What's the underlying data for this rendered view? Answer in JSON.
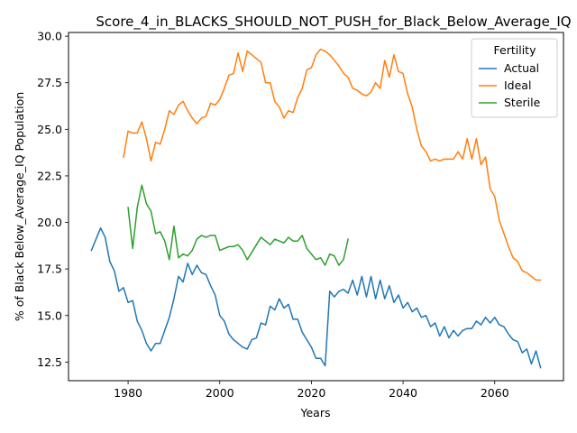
{
  "chart_data": {
    "type": "line",
    "title": "Score_4_in_BLACKS_SHOULD_NOT_PUSH_for_Black_Below_Average_IQ",
    "xlabel": "Years",
    "ylabel": "% of Black Below_Average_IQ Population",
    "xlim": [
      1967,
      2075
    ],
    "ylim": [
      11.5,
      30.2
    ],
    "x_ticks": [
      1980,
      2000,
      2020,
      2040,
      2060
    ],
    "x_tick_labels": [
      "1980",
      "2000",
      "2020",
      "2040",
      "2060"
    ],
    "y_ticks": [
      12.5,
      15.0,
      17.5,
      20.0,
      22.5,
      25.0,
      27.5,
      30.0
    ],
    "y_tick_labels": [
      "12.5",
      "15.0",
      "17.5",
      "20.0",
      "22.5",
      "25.0",
      "27.5",
      "30.0"
    ],
    "grid": false,
    "legend": {
      "title": "Fertility",
      "position": "upper right"
    },
    "series": [
      {
        "name": "Actual",
        "color": "#1f77b4",
        "x": [
          1972,
          1974,
          1975,
          1976,
          1977,
          1978,
          1979,
          1980,
          1981,
          1982,
          1983,
          1984,
          1985,
          1986,
          1987,
          1988,
          1989,
          1990,
          1991,
          1992,
          1993,
          1994,
          1995,
          1996,
          1997,
          1998,
          1999,
          2000,
          2001,
          2002,
          2003,
          2004,
          2005,
          2006,
          2007,
          2008,
          2009,
          2010,
          2011,
          2012,
          2013,
          2014,
          2015,
          2016,
          2017,
          2018,
          2019,
          2020,
          2021,
          2022,
          2023,
          2024,
          2025,
          2026,
          2027,
          2028,
          2029,
          2030,
          2031,
          2032,
          2033,
          2034,
          2035,
          2036,
          2037,
          2038,
          2039,
          2040,
          2041,
          2042,
          2043,
          2044,
          2045,
          2046,
          2047,
          2048,
          2049,
          2050,
          2051,
          2052,
          2053,
          2054,
          2055,
          2056,
          2057,
          2058,
          2059,
          2060,
          2061,
          2062,
          2063,
          2064,
          2065,
          2066,
          2067,
          2068,
          2069,
          2070
        ],
        "y": [
          18.5,
          19.7,
          19.2,
          17.9,
          17.4,
          16.3,
          16.5,
          15.7,
          15.8,
          14.7,
          14.2,
          13.5,
          13.1,
          13.5,
          13.5,
          14.2,
          14.9,
          15.9,
          17.1,
          16.8,
          17.8,
          17.2,
          17.7,
          17.3,
          17.2,
          16.6,
          16.1,
          15.0,
          14.7,
          14.0,
          13.7,
          13.5,
          13.3,
          13.2,
          13.7,
          13.8,
          14.6,
          14.5,
          15.5,
          15.3,
          15.9,
          15.4,
          15.6,
          14.8,
          14.8,
          14.1,
          13.7,
          13.3,
          12.7,
          12.7,
          12.3,
          16.3,
          16.0,
          16.3,
          16.4,
          16.2,
          16.9,
          16.1,
          17.1,
          16.0,
          17.1,
          15.9,
          16.9,
          15.9,
          16.6,
          15.7,
          16.1,
          15.4,
          15.7,
          15.2,
          15.4,
          14.9,
          15.0,
          14.4,
          14.6,
          13.9,
          14.4,
          13.8,
          14.2,
          13.9,
          14.2,
          14.3,
          14.3,
          14.7,
          14.5,
          14.9,
          14.6,
          14.9,
          14.5,
          14.4,
          14.0,
          13.7,
          13.6,
          13.0,
          13.2,
          12.4,
          13.1,
          12.2
        ]
      },
      {
        "name": "Ideal",
        "color": "#ff7f0e",
        "x": [
          1979,
          1980,
          1981,
          1982,
          1983,
          1984,
          1985,
          1986,
          1987,
          1988,
          1989,
          1990,
          1991,
          1992,
          1993,
          1994,
          1995,
          1996,
          1997,
          1998,
          1999,
          2000,
          2001,
          2002,
          2003,
          2004,
          2005,
          2006,
          2007,
          2008,
          2009,
          2010,
          2011,
          2012,
          2013,
          2014,
          2015,
          2016,
          2017,
          2018,
          2019,
          2020,
          2021,
          2022,
          2023,
          2024,
          2025,
          2026,
          2027,
          2028,
          2029,
          2030,
          2031,
          2032,
          2033,
          2034,
          2035,
          2036,
          2037,
          2038,
          2039,
          2040,
          2041,
          2042,
          2043,
          2044,
          2045,
          2046,
          2047,
          2048,
          2049,
          2050,
          2051,
          2052,
          2053,
          2054,
          2055,
          2056,
          2057,
          2058,
          2059,
          2060,
          2061,
          2062,
          2063,
          2064,
          2065,
          2066,
          2067,
          2068,
          2069,
          2070
        ],
        "y": [
          23.5,
          24.9,
          24.8,
          24.8,
          25.4,
          24.5,
          23.3,
          24.3,
          24.2,
          25.0,
          26.0,
          25.8,
          26.3,
          26.5,
          26.0,
          25.6,
          25.3,
          25.6,
          25.7,
          26.4,
          26.3,
          26.6,
          27.2,
          27.9,
          28.0,
          29.1,
          28.1,
          29.2,
          29.0,
          28.8,
          28.6,
          27.5,
          27.5,
          26.5,
          26.2,
          25.6,
          26.0,
          25.9,
          26.7,
          27.2,
          28.2,
          28.3,
          29.0,
          29.3,
          29.2,
          29.0,
          28.7,
          28.4,
          28.0,
          27.8,
          27.2,
          27.1,
          26.9,
          26.8,
          27.0,
          27.5,
          27.2,
          28.7,
          27.8,
          29.0,
          28.1,
          28.0,
          26.9,
          26.2,
          25.0,
          24.1,
          23.8,
          23.3,
          23.4,
          23.3,
          23.4,
          23.4,
          23.4,
          23.8,
          23.4,
          24.5,
          23.4,
          24.5,
          23.1,
          23.5,
          21.8,
          21.4,
          20.1,
          19.4,
          18.7,
          18.1,
          17.9,
          17.4,
          17.3,
          17.1,
          16.9,
          16.9
        ]
      },
      {
        "name": "Sterile",
        "color": "#2ca02c",
        "x": [
          1980,
          1981,
          1982,
          1983,
          1984,
          1985,
          1986,
          1987,
          1988,
          1989,
          1990,
          1991,
          1992,
          1993,
          1994,
          1995,
          1996,
          1997,
          1998,
          1999,
          2000,
          2001,
          2002,
          2003,
          2004,
          2005,
          2006,
          2007,
          2008,
          2009,
          2010,
          2011,
          2012,
          2013,
          2014,
          2015,
          2016,
          2017,
          2018,
          2019,
          2020,
          2021,
          2022,
          2023,
          2024,
          2025,
          2026,
          2027,
          2028
        ],
        "y": [
          20.8,
          18.6,
          20.8,
          22.0,
          21.0,
          20.6,
          19.4,
          19.5,
          19.0,
          18.0,
          19.8,
          18.1,
          18.3,
          18.2,
          18.5,
          19.1,
          19.3,
          19.2,
          19.3,
          19.3,
          18.5,
          18.6,
          18.7,
          18.7,
          18.8,
          18.5,
          18.0,
          18.4,
          18.8,
          19.2,
          19.0,
          18.8,
          19.1,
          19.0,
          18.9,
          19.2,
          19.0,
          19.0,
          19.3,
          18.6,
          18.3,
          18.0,
          18.1,
          17.7,
          18.3,
          18.2,
          17.7,
          18.0,
          19.1
        ]
      }
    ]
  }
}
